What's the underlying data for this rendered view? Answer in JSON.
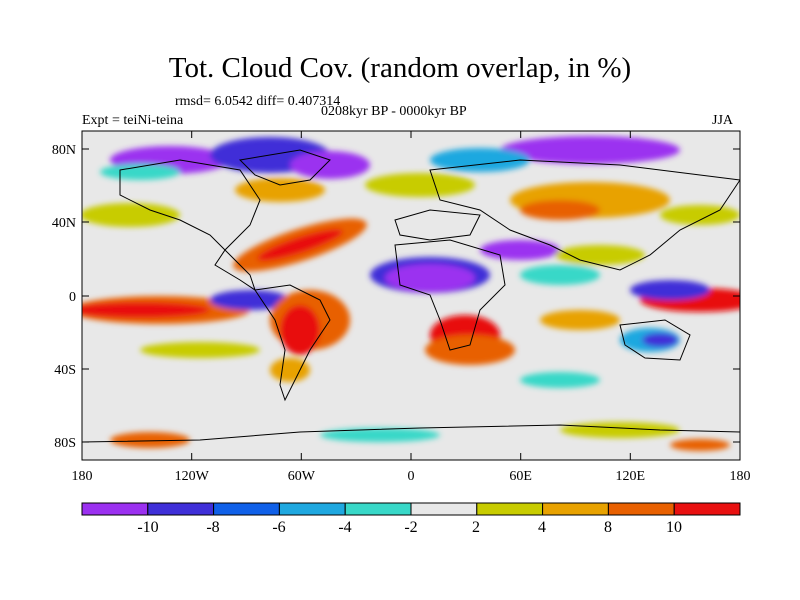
{
  "title": "Tot. Cloud Cov. (random overlap, in %)",
  "stats": "rmsd= 6.0542 diff= 0.407314",
  "period": "0208kyr BP - 0000kyr BP",
  "experiment": "Expt = teiNi-teina",
  "season": "JJA",
  "lat_ticks": [
    "80N",
    "40N",
    "0",
    "40S",
    "80S"
  ],
  "lon_ticks": [
    "180",
    "120W",
    "60W",
    "0",
    "60E",
    "120E",
    "180"
  ],
  "colorbar": {
    "colors": [
      "#9b30f0",
      "#3f2fd8",
      "#1060e8",
      "#1fa8e0",
      "#38d8c8",
      "#e8e8e8",
      "#c8cc00",
      "#e8a200",
      "#e86000",
      "#e81010"
    ],
    "labels": [
      "-10",
      "-8",
      "-6",
      "-4",
      "-2",
      "2",
      "4",
      "8",
      "10"
    ]
  }
}
